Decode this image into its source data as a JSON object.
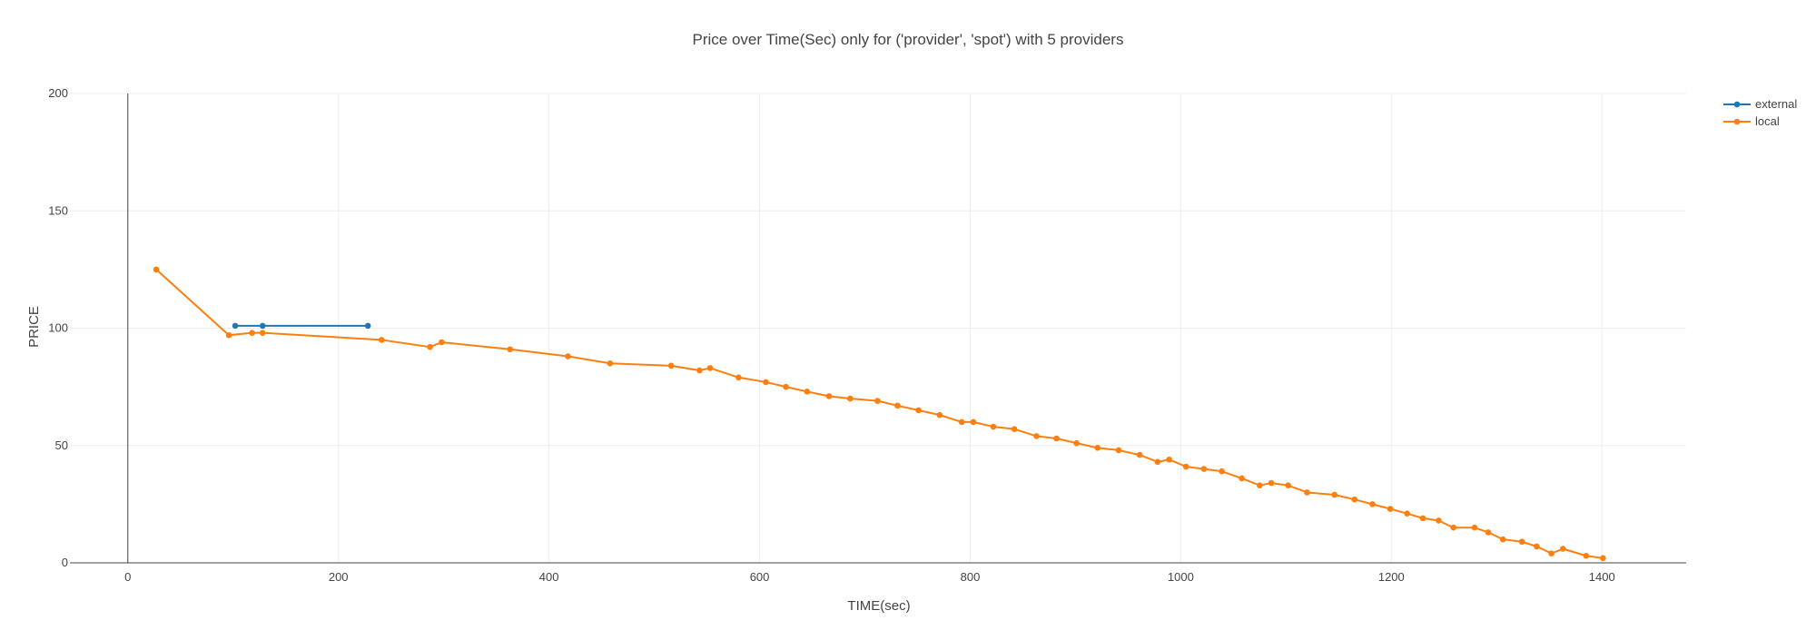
{
  "chart_data": {
    "type": "line",
    "title": "Price over Time(Sec) only for ('provider', 'spot') with 5 providers",
    "xlabel": "TIME(sec)",
    "ylabel": "PRICE",
    "xlim": [
      -55,
      1480
    ],
    "ylim": [
      0,
      200
    ],
    "x_ticks": [
      0,
      200,
      400,
      600,
      800,
      1000,
      1200,
      1400
    ],
    "y_ticks": [
      0,
      50,
      100,
      150,
      200
    ],
    "grid": true,
    "legend": "top-right",
    "series": [
      {
        "name": "external",
        "color": "#1f77b4",
        "x": [
          102,
          128,
          228
        ],
        "y": [
          101,
          101,
          101
        ]
      },
      {
        "name": "local",
        "color": "#ff7f0e",
        "x": [
          27,
          96,
          118,
          128,
          241,
          287,
          298,
          363,
          418,
          458,
          516,
          543,
          553,
          580,
          606,
          625,
          645,
          666,
          686,
          712,
          731,
          751,
          771,
          792,
          803,
          822,
          842,
          863,
          882,
          901,
          921,
          941,
          961,
          978,
          989,
          1005,
          1022,
          1039,
          1058,
          1075,
          1086,
          1102,
          1120,
          1146,
          1165,
          1182,
          1199,
          1215,
          1230,
          1245,
          1259,
          1279,
          1292,
          1306,
          1324,
          1338,
          1352,
          1363,
          1385,
          1401
        ],
        "y": [
          125,
          97,
          98,
          98,
          95,
          92,
          94,
          91,
          88,
          85,
          84,
          82,
          83,
          79,
          77,
          75,
          73,
          71,
          70,
          69,
          67,
          65,
          63,
          60,
          60,
          58,
          57,
          54,
          53,
          51,
          49,
          48,
          46,
          43,
          44,
          41,
          40,
          39,
          36,
          33,
          34,
          33,
          30,
          29,
          27,
          25,
          23,
          21,
          19,
          18,
          15,
          15,
          13,
          10,
          9,
          7,
          4,
          6,
          3,
          2
        ]
      }
    ]
  }
}
